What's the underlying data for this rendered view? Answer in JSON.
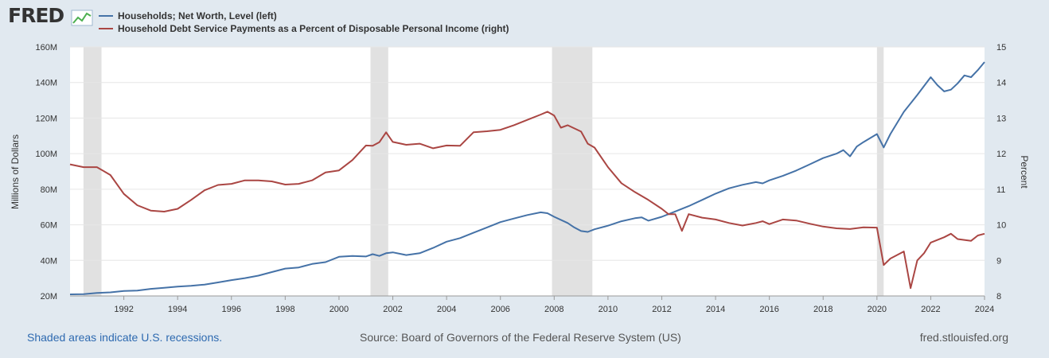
{
  "logo": {
    "text": "FRED",
    "icon": "line-graph-icon"
  },
  "legend": [
    {
      "label": "Households; Net Worth, Level (left)",
      "color": "#4572a7"
    },
    {
      "label": "Household Debt Service Payments as a Percent of Disposable Personal Income (right)",
      "color": "#aa4643"
    }
  ],
  "footer": {
    "recessions_note": "Shaded areas indicate U.S. recessions.",
    "source": "Source: Board of Governors of the Federal Reserve System (US)",
    "site": "fred.stlouisfed.org"
  },
  "chart_data": {
    "type": "line",
    "x_range": [
      1990.0,
      2024.0
    ],
    "x_ticks": [
      1992,
      1994,
      1996,
      1998,
      2000,
      2002,
      2004,
      2006,
      2008,
      2010,
      2012,
      2014,
      2016,
      2018,
      2020,
      2022,
      2024
    ],
    "y_left": {
      "label": "Millions of Dollars",
      "range": [
        20000000,
        160000000
      ],
      "ticks": [
        20000000,
        40000000,
        60000000,
        80000000,
        100000000,
        120000000,
        140000000,
        160000000
      ],
      "tick_labels": [
        "20M",
        "40M",
        "60M",
        "80M",
        "100M",
        "120M",
        "140M",
        "160M"
      ]
    },
    "y_right": {
      "label": "Percent",
      "range": [
        8,
        15
      ],
      "ticks": [
        8,
        9,
        10,
        11,
        12,
        13,
        14,
        15
      ],
      "tick_labels": [
        "8",
        "9",
        "10",
        "11",
        "12",
        "13",
        "14",
        "15"
      ]
    },
    "recessions": [
      [
        1990.5,
        1991.17
      ],
      [
        2001.17,
        2001.83
      ],
      [
        2007.92,
        2009.42
      ],
      [
        2020.0,
        2020.25
      ]
    ],
    "grid": true,
    "series": [
      {
        "name": "Households; Net Worth, Level (left)",
        "axis": "left",
        "color": "#4572a7",
        "points": [
          [
            1990.0,
            20900000
          ],
          [
            1990.5,
            21000000
          ],
          [
            1991.0,
            21700000
          ],
          [
            1991.5,
            22000000
          ],
          [
            1992.0,
            22800000
          ],
          [
            1992.5,
            23000000
          ],
          [
            1993.0,
            24000000
          ],
          [
            1993.5,
            24600000
          ],
          [
            1994.0,
            25300000
          ],
          [
            1994.5,
            25700000
          ],
          [
            1995.0,
            26400000
          ],
          [
            1995.5,
            27600000
          ],
          [
            1996.0,
            28900000
          ],
          [
            1996.5,
            30000000
          ],
          [
            1997.0,
            31400000
          ],
          [
            1997.5,
            33400000
          ],
          [
            1998.0,
            35400000
          ],
          [
            1998.5,
            36000000
          ],
          [
            1999.0,
            38000000
          ],
          [
            1999.5,
            39000000
          ],
          [
            2000.0,
            42000000
          ],
          [
            2000.5,
            42500000
          ],
          [
            2001.0,
            42200000
          ],
          [
            2001.25,
            43500000
          ],
          [
            2001.5,
            42500000
          ],
          [
            2001.75,
            44000000
          ],
          [
            2002.0,
            44500000
          ],
          [
            2002.5,
            43000000
          ],
          [
            2003.0,
            44000000
          ],
          [
            2003.5,
            47000000
          ],
          [
            2004.0,
            50500000
          ],
          [
            2004.5,
            52500000
          ],
          [
            2005.0,
            55500000
          ],
          [
            2005.5,
            58500000
          ],
          [
            2006.0,
            61500000
          ],
          [
            2006.5,
            63500000
          ],
          [
            2007.0,
            65500000
          ],
          [
            2007.5,
            67000000
          ],
          [
            2007.75,
            66500000
          ],
          [
            2008.0,
            64500000
          ],
          [
            2008.5,
            61000000
          ],
          [
            2008.75,
            58500000
          ],
          [
            2009.0,
            56500000
          ],
          [
            2009.25,
            56000000
          ],
          [
            2009.5,
            57500000
          ],
          [
            2010.0,
            59500000
          ],
          [
            2010.5,
            62000000
          ],
          [
            2011.0,
            63700000
          ],
          [
            2011.25,
            64200000
          ],
          [
            2011.5,
            62300000
          ],
          [
            2012.0,
            64500000
          ],
          [
            2012.5,
            67500000
          ],
          [
            2013.0,
            70500000
          ],
          [
            2013.5,
            74000000
          ],
          [
            2014.0,
            77500000
          ],
          [
            2014.5,
            80500000
          ],
          [
            2015.0,
            82500000
          ],
          [
            2015.5,
            84000000
          ],
          [
            2015.75,
            83300000
          ],
          [
            2016.0,
            85000000
          ],
          [
            2016.5,
            87500000
          ],
          [
            2017.0,
            90500000
          ],
          [
            2017.5,
            94000000
          ],
          [
            2018.0,
            97500000
          ],
          [
            2018.5,
            100000000
          ],
          [
            2018.75,
            102000000
          ],
          [
            2019.0,
            98500000
          ],
          [
            2019.25,
            104000000
          ],
          [
            2019.5,
            106500000
          ],
          [
            2020.0,
            111000000
          ],
          [
            2020.25,
            103500000
          ],
          [
            2020.5,
            111000000
          ],
          [
            2021.0,
            123500000
          ],
          [
            2021.5,
            133000000
          ],
          [
            2022.0,
            143000000
          ],
          [
            2022.25,
            138500000
          ],
          [
            2022.5,
            135000000
          ],
          [
            2022.75,
            136000000
          ],
          [
            2023.0,
            139500000
          ],
          [
            2023.25,
            144000000
          ],
          [
            2023.5,
            143000000
          ],
          [
            2023.75,
            147000000
          ],
          [
            2024.0,
            151500000
          ]
        ]
      },
      {
        "name": "Household Debt Service Payments as a Percent of Disposable Personal Income (right)",
        "axis": "right",
        "color": "#aa4643",
        "points": [
          [
            1990.0,
            11.7
          ],
          [
            1990.5,
            11.62
          ],
          [
            1991.0,
            11.62
          ],
          [
            1991.5,
            11.4
          ],
          [
            1992.0,
            10.87
          ],
          [
            1992.5,
            10.55
          ],
          [
            1993.0,
            10.4
          ],
          [
            1993.5,
            10.37
          ],
          [
            1994.0,
            10.45
          ],
          [
            1994.5,
            10.7
          ],
          [
            1995.0,
            10.97
          ],
          [
            1995.5,
            11.12
          ],
          [
            1996.0,
            11.15
          ],
          [
            1996.5,
            11.25
          ],
          [
            1997.0,
            11.25
          ],
          [
            1997.5,
            11.22
          ],
          [
            1998.0,
            11.13
          ],
          [
            1998.5,
            11.15
          ],
          [
            1999.0,
            11.25
          ],
          [
            1999.5,
            11.47
          ],
          [
            2000.0,
            11.53
          ],
          [
            2000.5,
            11.82
          ],
          [
            2001.0,
            12.23
          ],
          [
            2001.25,
            12.22
          ],
          [
            2001.5,
            12.32
          ],
          [
            2001.75,
            12.6
          ],
          [
            2002.0,
            12.33
          ],
          [
            2002.5,
            12.25
          ],
          [
            2003.0,
            12.28
          ],
          [
            2003.5,
            12.15
          ],
          [
            2004.0,
            12.23
          ],
          [
            2004.5,
            12.22
          ],
          [
            2005.0,
            12.6
          ],
          [
            2005.5,
            12.63
          ],
          [
            2006.0,
            12.67
          ],
          [
            2006.5,
            12.8
          ],
          [
            2007.0,
            12.95
          ],
          [
            2007.5,
            13.1
          ],
          [
            2007.75,
            13.18
          ],
          [
            2008.0,
            13.07
          ],
          [
            2008.25,
            12.73
          ],
          [
            2008.5,
            12.8
          ],
          [
            2009.0,
            12.62
          ],
          [
            2009.25,
            12.28
          ],
          [
            2009.5,
            12.17
          ],
          [
            2010.0,
            11.62
          ],
          [
            2010.5,
            11.17
          ],
          [
            2011.0,
            10.92
          ],
          [
            2011.5,
            10.7
          ],
          [
            2012.0,
            10.45
          ],
          [
            2012.25,
            10.3
          ],
          [
            2012.5,
            10.3
          ],
          [
            2012.75,
            9.83
          ],
          [
            2013.0,
            10.3
          ],
          [
            2013.5,
            10.2
          ],
          [
            2014.0,
            10.15
          ],
          [
            2014.5,
            10.05
          ],
          [
            2015.0,
            9.98
          ],
          [
            2015.5,
            10.05
          ],
          [
            2015.75,
            10.1
          ],
          [
            2016.0,
            10.02
          ],
          [
            2016.5,
            10.15
          ],
          [
            2017.0,
            10.12
          ],
          [
            2017.5,
            10.03
          ],
          [
            2018.0,
            9.95
          ],
          [
            2018.5,
            9.9
          ],
          [
            2019.0,
            9.88
          ],
          [
            2019.5,
            9.93
          ],
          [
            2020.0,
            9.92
          ],
          [
            2020.25,
            8.87
          ],
          [
            2020.5,
            9.05
          ],
          [
            2021.0,
            9.25
          ],
          [
            2021.25,
            8.22
          ],
          [
            2021.5,
            9.0
          ],
          [
            2021.75,
            9.2
          ],
          [
            2022.0,
            9.5
          ],
          [
            2022.5,
            9.65
          ],
          [
            2022.75,
            9.75
          ],
          [
            2023.0,
            9.6
          ],
          [
            2023.5,
            9.55
          ],
          [
            2023.75,
            9.7
          ],
          [
            2024.0,
            9.75
          ]
        ]
      }
    ]
  }
}
